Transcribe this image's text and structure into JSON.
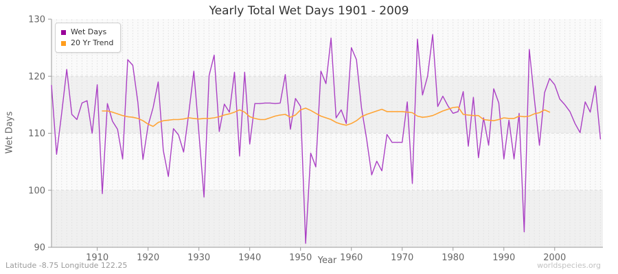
{
  "title": "Yearly Total Wet Days 1901 - 2009",
  "axes": {
    "x_label": "Year",
    "y_label": "Wet Days",
    "x_ticks": [
      1910,
      1920,
      1930,
      1940,
      1950,
      1960,
      1970,
      1980,
      1990,
      2000
    ],
    "y_ticks": [
      90,
      100,
      110,
      120,
      130
    ]
  },
  "legend": {
    "items": [
      {
        "label": "Wet Days",
        "color": "#990099"
      },
      {
        "label": "20 Yr Trend",
        "color": "#ff9d1d"
      }
    ]
  },
  "footer": {
    "left": "Latitude -8.75 Longitude 122.25",
    "right": "worldspecies.org"
  },
  "colors": {
    "wet_days_line": "#aa3fc4",
    "trend_line": "#ffa435",
    "band_light": "#fafafa",
    "band_dark": "#f0f0f0",
    "grid_v": "#e4e4e4",
    "grid_h": "#dcdcdc",
    "spine": "#999999",
    "tick_text": "#666666"
  },
  "chart_data": {
    "type": "line",
    "title": "Yearly Total Wet Days 1901 - 2009",
    "xlabel": "Year",
    "ylabel": "Wet Days",
    "xlim": [
      1901,
      2009
    ],
    "ylim": [
      90,
      130
    ],
    "grid": "yearly vertical dashed, horizontal dashed at 100/110/120, alternating 10-unit shaded bands",
    "legend_position": "top-left",
    "series": [
      {
        "name": "Wet Days",
        "x_start": 1901,
        "values": [
          118.4,
          106.3,
          113.5,
          121.2,
          113.3,
          112.4,
          115.3,
          115.7,
          110.0,
          118.5,
          99.4,
          115.2,
          112.1,
          110.7,
          105.5,
          122.9,
          121.9,
          115.4,
          105.4,
          111.3,
          114.5,
          119.0,
          107.0,
          102.4,
          110.8,
          109.7,
          106.7,
          113.5,
          120.9,
          110.0,
          98.8,
          120.1,
          123.7,
          110.3,
          115.1,
          113.7,
          120.7,
          106.0,
          120.7,
          108.1,
          115.2,
          115.2,
          115.3,
          115.3,
          115.2,
          115.3,
          120.3,
          110.7,
          116.1,
          114.7,
          90.7,
          106.5,
          104.1,
          120.9,
          118.7,
          126.7,
          112.7,
          114.1,
          111.7,
          125.0,
          122.9,
          114.4,
          109.0,
          102.7,
          105.1,
          103.4,
          109.8,
          108.4,
          108.4,
          108.4,
          115.5,
          101.2,
          126.5,
          116.7,
          120.0,
          127.3,
          114.7,
          116.5,
          114.8,
          113.5,
          113.8,
          117.3,
          107.7,
          116.3,
          105.7,
          112.7,
          107.9,
          117.8,
          115.3,
          105.5,
          112.3,
          105.5,
          113.5,
          92.7,
          124.7,
          116.0,
          107.9,
          117.1,
          119.6,
          118.5,
          116.0,
          115.0,
          113.8,
          111.7,
          110.1,
          115.5,
          113.7,
          118.3,
          109.0
        ]
      },
      {
        "name": "20 Yr Trend",
        "x_start": 1911,
        "values": [
          113.9,
          113.9,
          113.7,
          113.4,
          113.1,
          112.9,
          112.8,
          112.6,
          112.2,
          111.6,
          111.2,
          111.9,
          112.2,
          112.3,
          112.4,
          112.4,
          112.5,
          112.7,
          112.6,
          112.5,
          112.6,
          112.6,
          112.7,
          112.9,
          113.2,
          113.4,
          113.7,
          114.1,
          113.7,
          112.9,
          112.6,
          112.4,
          112.4,
          112.7,
          113.0,
          113.2,
          113.3,
          112.8,
          113.2,
          114.1,
          114.4,
          114.0,
          113.5,
          113.0,
          112.7,
          112.4,
          111.9,
          111.6,
          111.4,
          111.7,
          112.2,
          112.9,
          113.3,
          113.6,
          113.9,
          114.2,
          113.8,
          113.8,
          113.8,
          113.8,
          113.7,
          113.6,
          113.0,
          112.8,
          112.9,
          113.1,
          113.5,
          113.9,
          114.2,
          114.5,
          114.6,
          113.3,
          113.2,
          113.1,
          113.1,
          112.4,
          112.3,
          112.2,
          112.4,
          112.7,
          112.6,
          112.6,
          113.0,
          112.9,
          113.0,
          113.4,
          113.6,
          114.1,
          113.7
        ]
      }
    ]
  }
}
